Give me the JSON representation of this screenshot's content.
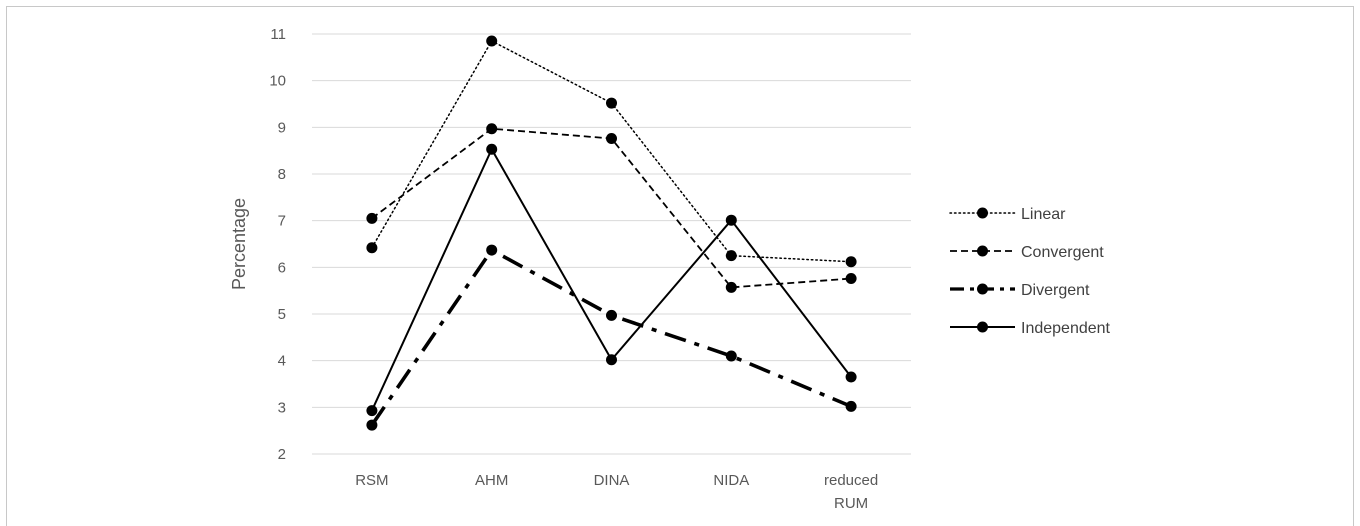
{
  "chart_data": {
    "type": "line",
    "ylabel": "Percentage",
    "xlabel": "",
    "categories": [
      "RSM",
      "AHM",
      "DINA",
      "NIDA",
      "reduced RUM"
    ],
    "ylim": [
      2,
      11
    ],
    "yticks": [
      2,
      3,
      4,
      5,
      6,
      7,
      8,
      9,
      10,
      11
    ],
    "grid": "horizontal",
    "legend_position": "right",
    "series": [
      {
        "name": "Linear",
        "style": "dotted",
        "values": [
          6.42,
          10.85,
          9.52,
          6.25,
          6.12
        ]
      },
      {
        "name": "Convergent",
        "style": "dashed",
        "values": [
          7.05,
          8.97,
          8.76,
          5.57,
          5.76
        ]
      },
      {
        "name": "Divergent",
        "style": "dash-dot-thick",
        "values": [
          2.62,
          6.37,
          4.97,
          4.1,
          3.02
        ]
      },
      {
        "name": "Independent",
        "style": "solid",
        "values": [
          2.93,
          8.53,
          4.02,
          7.01,
          3.65
        ]
      }
    ],
    "line_color": "#000000",
    "grid_color": "#d9d9d9"
  }
}
